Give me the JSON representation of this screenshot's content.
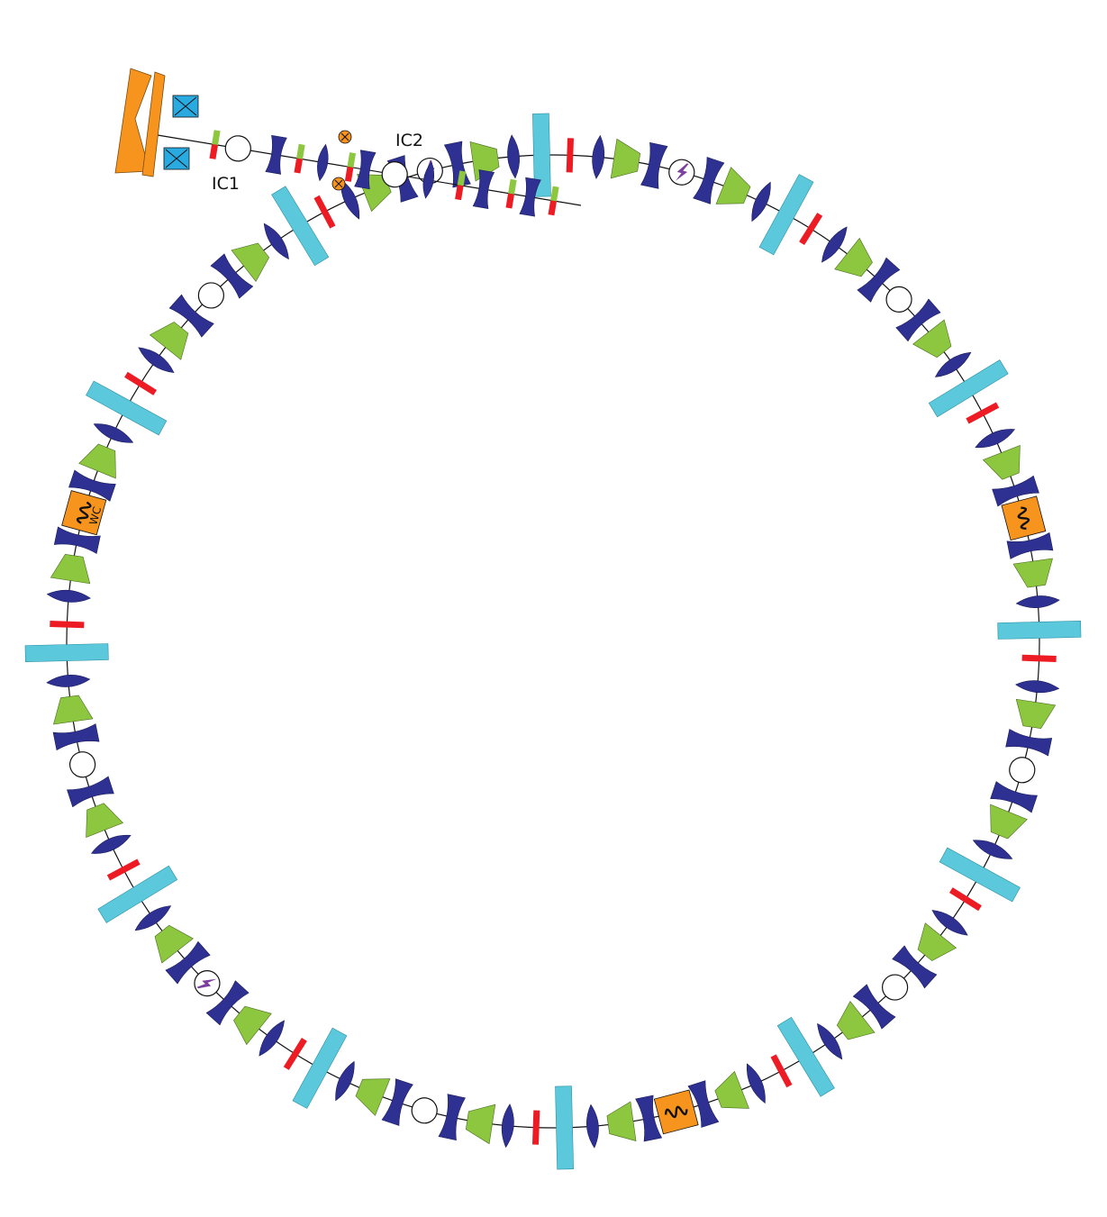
{
  "diagram": {
    "labels": {
      "ic1": "IC1",
      "ic2": "IC2",
      "wiggler_tag": "WC"
    },
    "colors": {
      "dipole": "#8dc63f",
      "focusing_quad": "#2e3192",
      "defocusing_quad": "#2e3192",
      "corrector": "#ed1c24",
      "septum_kicker": "#5bc8dc",
      "source_cavity": "#f7941d",
      "solenoid": "#29abe2",
      "insertion_device": "#f7941d",
      "rf_cavity_icon": "#7b3f9e",
      "monitor": "#ffffff",
      "line": "#111111"
    },
    "legend_icons": [
      "dipole-icon",
      "focusing-quad-icon",
      "defocusing-quad-icon",
      "corrector-icon",
      "kicker-icon",
      "monitor-icon",
      "wiggler-icon",
      "rf-cavity-icon",
      "solenoid-icon",
      "steerer-icon"
    ]
  }
}
